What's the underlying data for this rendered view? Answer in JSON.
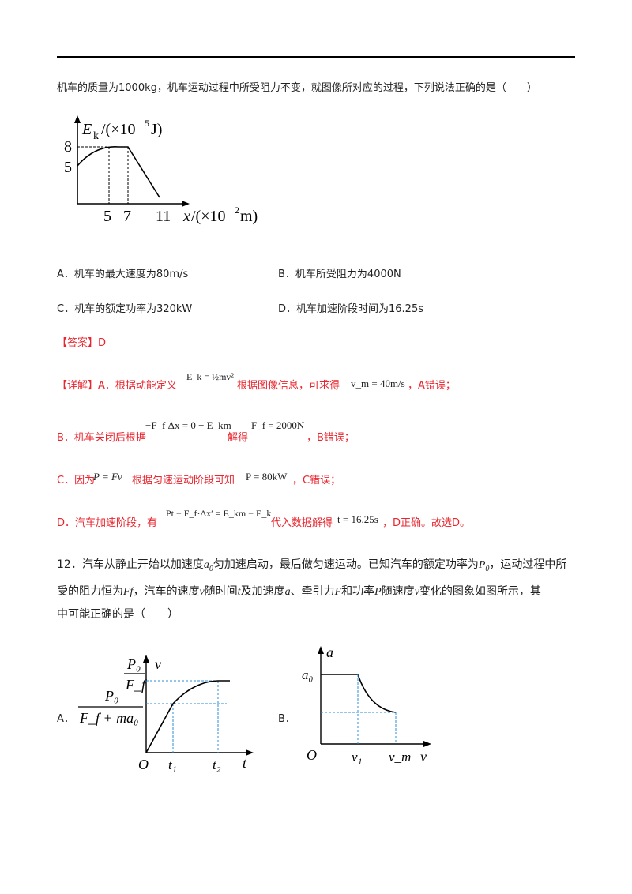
{
  "q11": {
    "stem": "机车的质量为1000kg，机车运动过程中所受阻力不变，就图像所对应的过程，下列说法正确的是（　　）",
    "graph": {
      "y_label": "E",
      "y_sub": "k",
      "y_unit_pre": "/(×10",
      "y_unit_exp": "5",
      "y_unit_post": "J)",
      "y_ticks": [
        "8",
        "5"
      ],
      "x_ticks": [
        "5",
        "7",
        "11"
      ],
      "x_label": "x",
      "x_unit_pre": "/(×10",
      "x_unit_exp": "2",
      "x_unit_post": "m)"
    },
    "options": {
      "A": "A．机车的最大速度为80m/s",
      "B": "B．机车所受阻力为4000N",
      "C": "C．机车的额定功率为320kW",
      "D": "D．机车加速阶段时间为16.25s"
    },
    "answer": "【答案】D",
    "detail": {
      "line1_a": "【详解】A．根据动能定义",
      "line1_eq1": "E_k = ½mv²",
      "line1_b": "根据图像信息，可求得",
      "line1_eq2": "v_m = 40m/s",
      "line1_c": "，A错误；",
      "line2_a": "B．机车关闭后根据",
      "line2_eq1": "−F_f Δx = 0 − E_km",
      "line2_b": "解得",
      "line2_eq2": "F_f = 2000N",
      "line2_c": "，B错误；",
      "line3_a": "C．因为",
      "line3_eq1": "P = Fv",
      "line3_b": "根据匀速运动阶段可知",
      "line3_eq2": "P = 80kW",
      "line3_c": "，C错误；",
      "line4_a": "D．汽车加速阶段，有",
      "line4_eq1": "Pt − F_f·Δx′ = E_km − E_k",
      "line4_b": "代入数据解得",
      "line4_eq2": "t = 16.25s",
      "line4_c": "，D正确。故选D。"
    }
  },
  "q12": {
    "line1_a": "12．汽车从静止开始以加速度",
    "a0": "a",
    "a0_sub": "0",
    "line1_b": "匀加速启动，最后做匀速运动。已知汽车的额定功率为",
    "P0": "P",
    "P0_sub": "0",
    "line1_c": "，运动过程中所",
    "line2_a": "受的阻力恒为",
    "Ff": "Ff",
    "line2_b": "，汽车的速度",
    "v": "v",
    "line2_c": "随时间",
    "t": "t",
    "line2_d": "及加速度",
    "a": "a",
    "line2_e": "、牵引力",
    "F": "F",
    "line2_f": "和功率",
    "P": "P",
    "line2_g": "随速度",
    "v2": "v",
    "line2_h": "变化的图象如图所示，其",
    "line3": "中可能正确的是（　　）",
    "optA": "A．",
    "optB": "B．",
    "graphA": {
      "frac1_num": "P₀",
      "frac1_den": "F_f",
      "y_axis": "v",
      "frac2_num": "P₀",
      "frac2_den": "F_f + ma₀",
      "origin": "O",
      "t1": "t₁",
      "t2": "t₂",
      "x_axis": "t"
    },
    "graphB": {
      "y_axis": "a",
      "a0": "a₀",
      "origin": "O",
      "v1": "v₁",
      "vm": "v_m",
      "x_axis": "v"
    }
  }
}
